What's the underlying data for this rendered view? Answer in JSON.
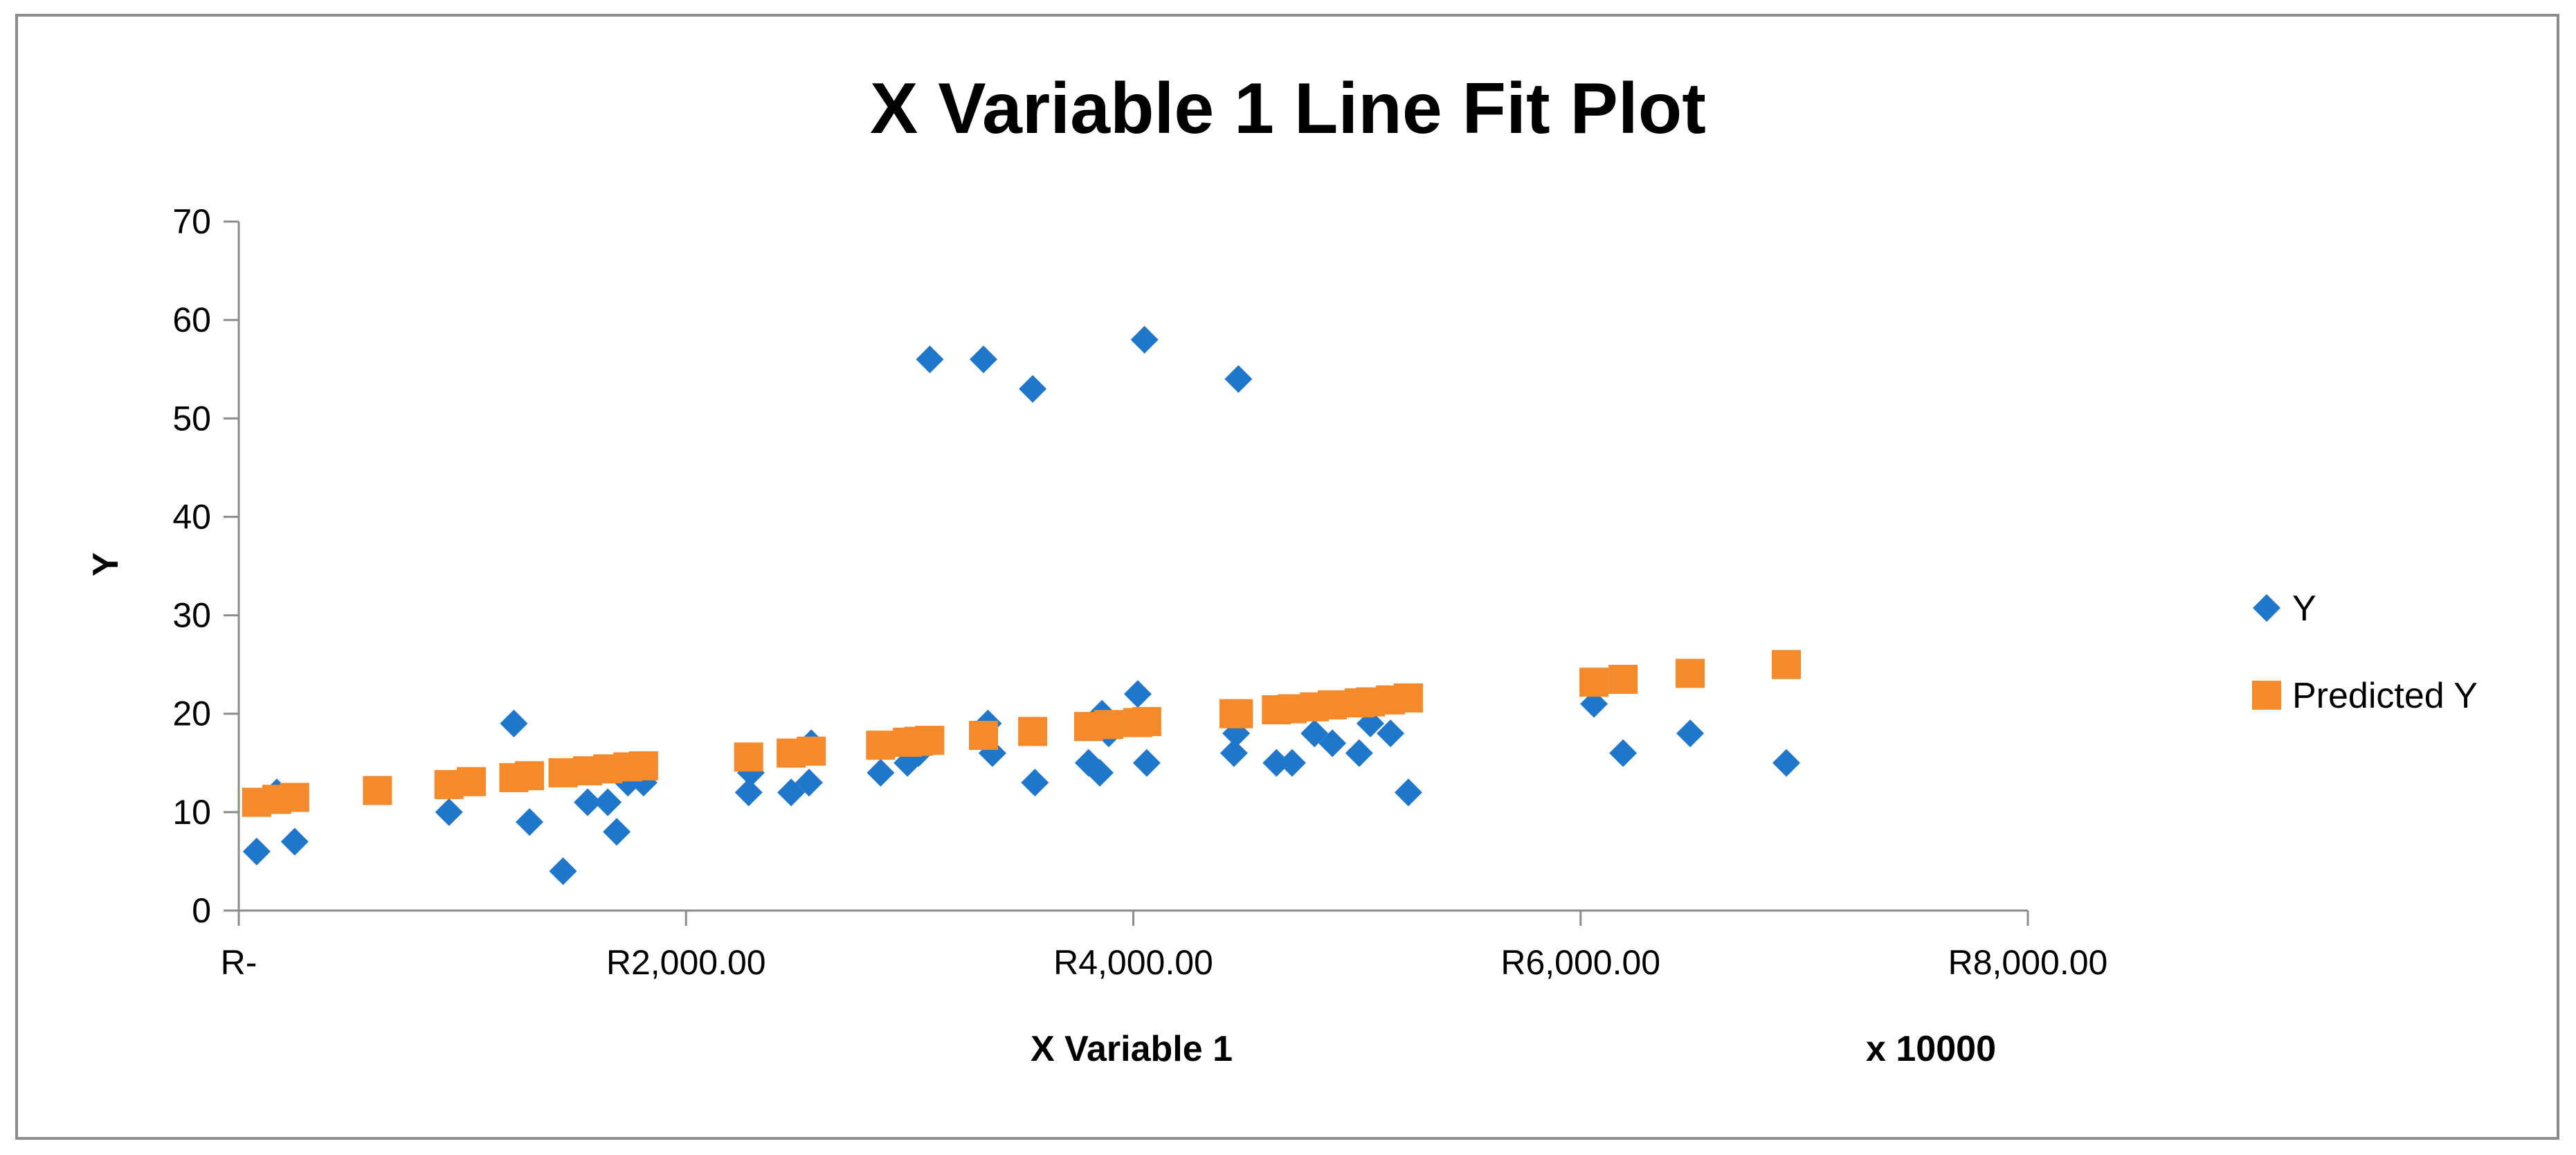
{
  "chart_data": {
    "type": "scatter",
    "title": "X Variable 1 Line Fit  Plot",
    "xlabel": "X Variable 1",
    "ylabel": "Y",
    "x_unit_label": "x 10000",
    "xlim": [
      0,
      8000
    ],
    "ylim": [
      0,
      70
    ],
    "x_ticks": [
      0,
      2000,
      4000,
      6000,
      8000
    ],
    "x_tick_labels": [
      "R-",
      "R2,000.00",
      "R4,000.00",
      "R6,000.00",
      "R8,000.00"
    ],
    "y_ticks": [
      0,
      10,
      20,
      30,
      40,
      50,
      60,
      70
    ],
    "y_tick_labels": [
      "0",
      "10",
      "20",
      "30",
      "40",
      "50",
      "60",
      "70"
    ],
    "grid": false,
    "legend_position": "right",
    "series": [
      {
        "name": "Y",
        "marker": "diamond",
        "color": "#1F77CC",
        "points": [
          [
            80,
            6
          ],
          [
            170,
            12
          ],
          [
            250,
            7
          ],
          [
            940,
            10
          ],
          [
            1230,
            19
          ],
          [
            1300,
            9
          ],
          [
            1450,
            4
          ],
          [
            1560,
            11
          ],
          [
            1650,
            11
          ],
          [
            1690,
            8
          ],
          [
            1740,
            13
          ],
          [
            1810,
            13
          ],
          [
            2280,
            12
          ],
          [
            2290,
            14
          ],
          [
            2470,
            12
          ],
          [
            2550,
            13
          ],
          [
            2560,
            17
          ],
          [
            2870,
            14
          ],
          [
            2990,
            15
          ],
          [
            3040,
            16
          ],
          [
            3090,
            56
          ],
          [
            3330,
            56
          ],
          [
            3350,
            19
          ],
          [
            3370,
            16
          ],
          [
            3550,
            53
          ],
          [
            3560,
            13
          ],
          [
            3800,
            15
          ],
          [
            3850,
            14
          ],
          [
            3860,
            20
          ],
          [
            3890,
            18
          ],
          [
            4020,
            22
          ],
          [
            4050,
            58
          ],
          [
            4060,
            15
          ],
          [
            4450,
            16
          ],
          [
            4460,
            18
          ],
          [
            4470,
            54
          ],
          [
            4640,
            15
          ],
          [
            4710,
            15
          ],
          [
            4810,
            18
          ],
          [
            4890,
            17
          ],
          [
            5010,
            16
          ],
          [
            5060,
            19
          ],
          [
            5150,
            18
          ],
          [
            5230,
            12
          ],
          [
            6060,
            21
          ],
          [
            6190,
            16
          ],
          [
            6490,
            18
          ],
          [
            6920,
            15
          ]
        ]
      },
      {
        "name": "Predicted Y",
        "marker": "square",
        "color": "#F58A2C",
        "points": [
          [
            80,
            11
          ],
          [
            170,
            11.3
          ],
          [
            250,
            11.5
          ],
          [
            620,
            12.2
          ],
          [
            940,
            12.8
          ],
          [
            1040,
            13.1
          ],
          [
            1230,
            13.5
          ],
          [
            1300,
            13.7
          ],
          [
            1450,
            14
          ],
          [
            1560,
            14.2
          ],
          [
            1650,
            14.4
          ],
          [
            1740,
            14.6
          ],
          [
            1810,
            14.7
          ],
          [
            2280,
            15.6
          ],
          [
            2470,
            16
          ],
          [
            2560,
            16.2
          ],
          [
            2870,
            16.8
          ],
          [
            2990,
            17.1
          ],
          [
            3040,
            17.2
          ],
          [
            3090,
            17.3
          ],
          [
            3330,
            17.8
          ],
          [
            3550,
            18.2
          ],
          [
            3800,
            18.7
          ],
          [
            3890,
            18.9
          ],
          [
            4020,
            19.1
          ],
          [
            4060,
            19.2
          ],
          [
            4450,
            20
          ],
          [
            4470,
            20
          ],
          [
            4640,
            20.4
          ],
          [
            4710,
            20.5
          ],
          [
            4810,
            20.7
          ],
          [
            4890,
            20.9
          ],
          [
            5010,
            21.1
          ],
          [
            5060,
            21.2
          ],
          [
            5150,
            21.4
          ],
          [
            5230,
            21.6
          ],
          [
            6060,
            23.2
          ],
          [
            6190,
            23.5
          ],
          [
            6490,
            24.1
          ],
          [
            6920,
            25
          ]
        ]
      }
    ]
  }
}
